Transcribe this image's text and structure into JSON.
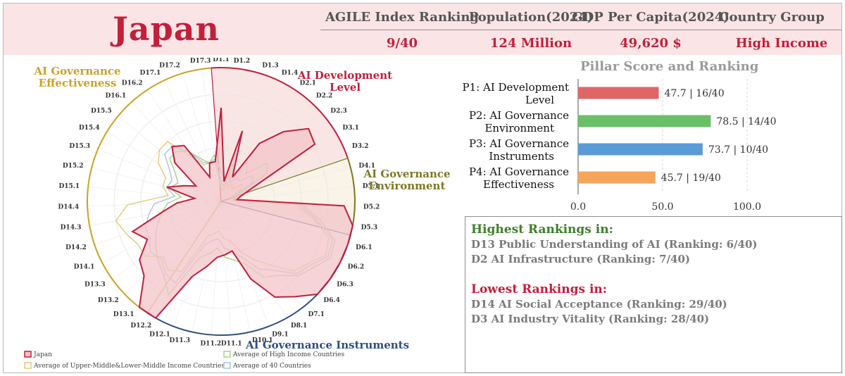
{
  "header": {
    "country": "Japan",
    "labels": [
      "AGILE Index Ranking",
      "Population(2024)",
      "GDP Per Capita(2024)",
      "Country Group"
    ],
    "values": [
      "9/40",
      "124 Million",
      "49,620 $",
      "High Income"
    ]
  },
  "highlights": {
    "highest_title": "Highest Rankings in:",
    "highest": [
      "D13 Public Understanding of AI (Ranking: 6/40)",
      "D2 AI Infrastructure (Ranking: 7/40)"
    ],
    "lowest_title": "Lowest Rankings in:",
    "lowest": [
      "D14 AI Social Acceptance (Ranking: 29/40)",
      "D3 AI Industry Vitality (Ranking: 28/40)"
    ]
  },
  "colors": {
    "japan": "#c21f3a",
    "japan_fill": "#f3c4c9",
    "high_income": "#a8d08d",
    "middle_income": "#e2c97a",
    "avg40": "#a6c4e0",
    "pillar1": "#e06666",
    "pillar2": "#6abf69",
    "pillar3": "#5b9bd5",
    "pillar4": "#f6a55b"
  },
  "chart_data": [
    {
      "type": "bar",
      "orientation": "horizontal",
      "title": "Pillar Score and Ranking",
      "categories": [
        [
          "P1: AI Development",
          "Level"
        ],
        [
          "P2: AI Governance",
          "Environment"
        ],
        [
          "P3: AI Governance",
          "Instruments"
        ],
        [
          "P4: AI Governance",
          "Effectiveness"
        ]
      ],
      "values": [
        47.7,
        78.5,
        73.7,
        45.7
      ],
      "data_labels": [
        "47.7 | 16/40",
        "78.5 | 14/40",
        "73.7 | 10/40",
        "45.7 | 19/40"
      ],
      "xlim": [
        0,
        100
      ],
      "xticks": [
        "0.0",
        "50.0",
        "100.0"
      ]
    },
    {
      "type": "radar",
      "axes": [
        "D1.1",
        "D1.2",
        "D1.3",
        "D1.4",
        "D2.1",
        "D2.2",
        "D2.3",
        "D3.1",
        "D3.2",
        "D4.1",
        "D5.1",
        "D5.2",
        "D5.3",
        "D6.1",
        "D6.2",
        "D6.3",
        "D6.4",
        "D7.1",
        "D8.1",
        "D9.1",
        "D10.1",
        "D11.1",
        "D11.2",
        "D11.3",
        "D12.1",
        "D12.2",
        "D13.1",
        "D13.2",
        "D13.3",
        "D14.1",
        "D14.2",
        "D14.3",
        "D14.4",
        "D15.1",
        "D15.2",
        "D15.3",
        "D15.4",
        "D15.5",
        "D16.1",
        "D16.2",
        "D17.1",
        "D17.2",
        "D17.3"
      ],
      "range": [
        0,
        100
      ],
      "pillars": [
        {
          "name": [
            "AI Development",
            "Level"
          ],
          "color": "#c21f3a"
        },
        {
          "name": [
            "AI Governance",
            "Environment"
          ],
          "color": "#7a7a24"
        },
        {
          "name": [
            "AI Governance Instruments"
          ],
          "color": "#2f4f7f"
        },
        {
          "name": [
            "AI Governance",
            "Effectiveness"
          ],
          "color": "#c9a227"
        }
      ],
      "series": [
        {
          "name": "Japan",
          "values": [
            70,
            15,
            55,
            20,
            52,
            70,
            85,
            82,
            25,
            15,
            12,
            92,
            100,
            100,
            100,
            100,
            100,
            90,
            82,
            62,
            38,
            40,
            42,
            50,
            60,
            100,
            100,
            80,
            75,
            62,
            70,
            45,
            33,
            20,
            42,
            30,
            22,
            45,
            55,
            50,
            20,
            30,
            30
          ]
        },
        {
          "name": "Average of High Income Countries",
          "values": [
            22,
            18,
            30,
            20,
            35,
            28,
            45,
            40,
            15,
            12,
            10,
            60,
            75,
            90,
            92,
            85,
            80,
            70,
            65,
            50,
            45,
            42,
            35,
            40,
            45,
            80,
            70,
            65,
            60,
            55,
            50,
            45,
            40,
            30,
            40,
            35,
            40,
            50,
            50,
            45,
            35,
            30,
            35
          ]
        },
        {
          "name": "Average of Upper-Middle&Lower-Middle Income Countries",
          "values": [
            10,
            8,
            15,
            12,
            15,
            12,
            20,
            18,
            8,
            10,
            8,
            55,
            70,
            85,
            88,
            80,
            75,
            60,
            50,
            40,
            30,
            28,
            22,
            25,
            28,
            60,
            65,
            60,
            70,
            70,
            75,
            80,
            70,
            40,
            45,
            45,
            55,
            60,
            60,
            40,
            30,
            30,
            30
          ]
        },
        {
          "name": "Average of 40 Countries",
          "values": [
            15,
            12,
            22,
            15,
            22,
            20,
            30,
            28,
            12,
            11,
            9,
            58,
            72,
            88,
            90,
            82,
            78,
            65,
            58,
            45,
            38,
            35,
            28,
            30,
            35,
            70,
            68,
            62,
            65,
            60,
            60,
            55,
            50,
            35,
            42,
            40,
            45,
            55,
            55,
            45,
            32,
            30,
            32
          ]
        }
      ],
      "legend": [
        "Japan",
        "Average of High Income Countries",
        "Average of Upper-Middle&Lower-Middle Income Countries",
        "Average of 40 Countries"
      ]
    }
  ]
}
